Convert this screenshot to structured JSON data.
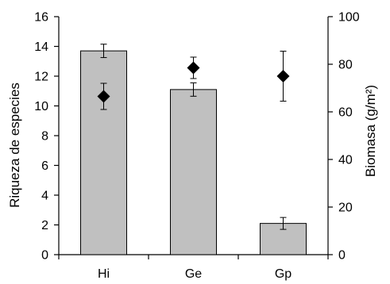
{
  "chart_data": {
    "type": "bar",
    "categories": [
      "Hi",
      "Ge",
      "Gp"
    ],
    "series": [
      {
        "axis": "left",
        "mark": "bar",
        "values": [
          13.7,
          11.1,
          2.1
        ],
        "error": [
          0.45,
          0.45,
          0.4
        ],
        "color": "#c0c0c0"
      },
      {
        "axis": "right",
        "mark": "diamond",
        "values": [
          66.5,
          78.5,
          75.0
        ],
        "error": [
          5.5,
          4.5,
          10.5
        ],
        "color": "#000000"
      }
    ],
    "ylabel": "Riqueza de especies",
    "y2label": "Biomasa (g/m²)",
    "ylim": [
      0,
      16
    ],
    "y2lim": [
      0,
      100
    ],
    "yticks": [
      0,
      2,
      4,
      6,
      8,
      10,
      12,
      14,
      16
    ],
    "y2ticks": [
      0,
      20,
      40,
      60,
      80,
      100
    ],
    "grid": false
  }
}
